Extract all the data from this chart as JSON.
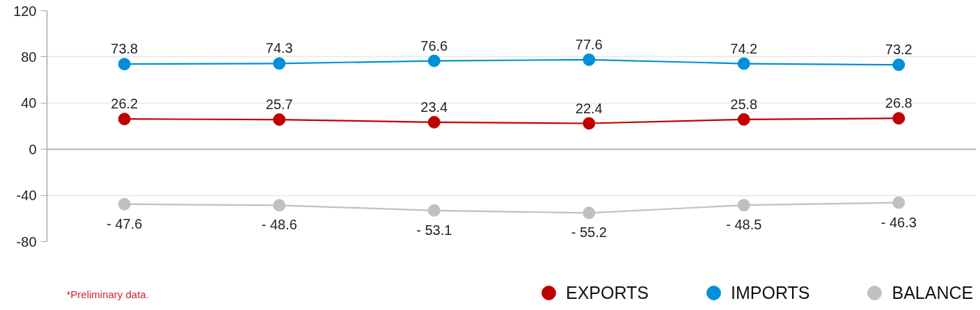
{
  "chart_data": {
    "type": "line",
    "categories": [
      null,
      null,
      null,
      null,
      null,
      null
    ],
    "series": [
      {
        "name": "EXPORTS",
        "color": "#c00000",
        "values": [
          26.2,
          25.7,
          23.4,
          22.4,
          25.8,
          26.8
        ],
        "value_labels": [
          "26.2",
          "25.7",
          "23.4",
          "22.4",
          "25.8",
          "26.8"
        ]
      },
      {
        "name": "IMPORTS",
        "color": "#0090d9",
        "values": [
          73.8,
          74.3,
          76.6,
          77.6,
          74.2,
          73.2
        ],
        "value_labels": [
          "73.8",
          "74.3",
          "76.6",
          "77.6",
          "74.2",
          "73.2"
        ]
      },
      {
        "name": "BALANCE",
        "color": "#c0c0c0",
        "values": [
          -47.6,
          -48.6,
          -53.1,
          -55.2,
          -48.5,
          -46.3
        ],
        "value_labels": [
          "- 47.6",
          "- 48.6",
          "- 53.1",
          "- 55.2",
          "- 48.5",
          "- 46.3"
        ]
      }
    ],
    "ylim": [
      -80,
      120
    ],
    "yticks": [
      120,
      80,
      40,
      0,
      -40,
      -80
    ],
    "ref_lines": [
      {
        "axis": "y",
        "value": 0,
        "color": "#a6a6a6"
      }
    ],
    "grid": "y",
    "legend": "bottom right",
    "marker": "circle",
    "line_style": "solid",
    "annotations": [
      "*Preliminary data."
    ]
  }
}
